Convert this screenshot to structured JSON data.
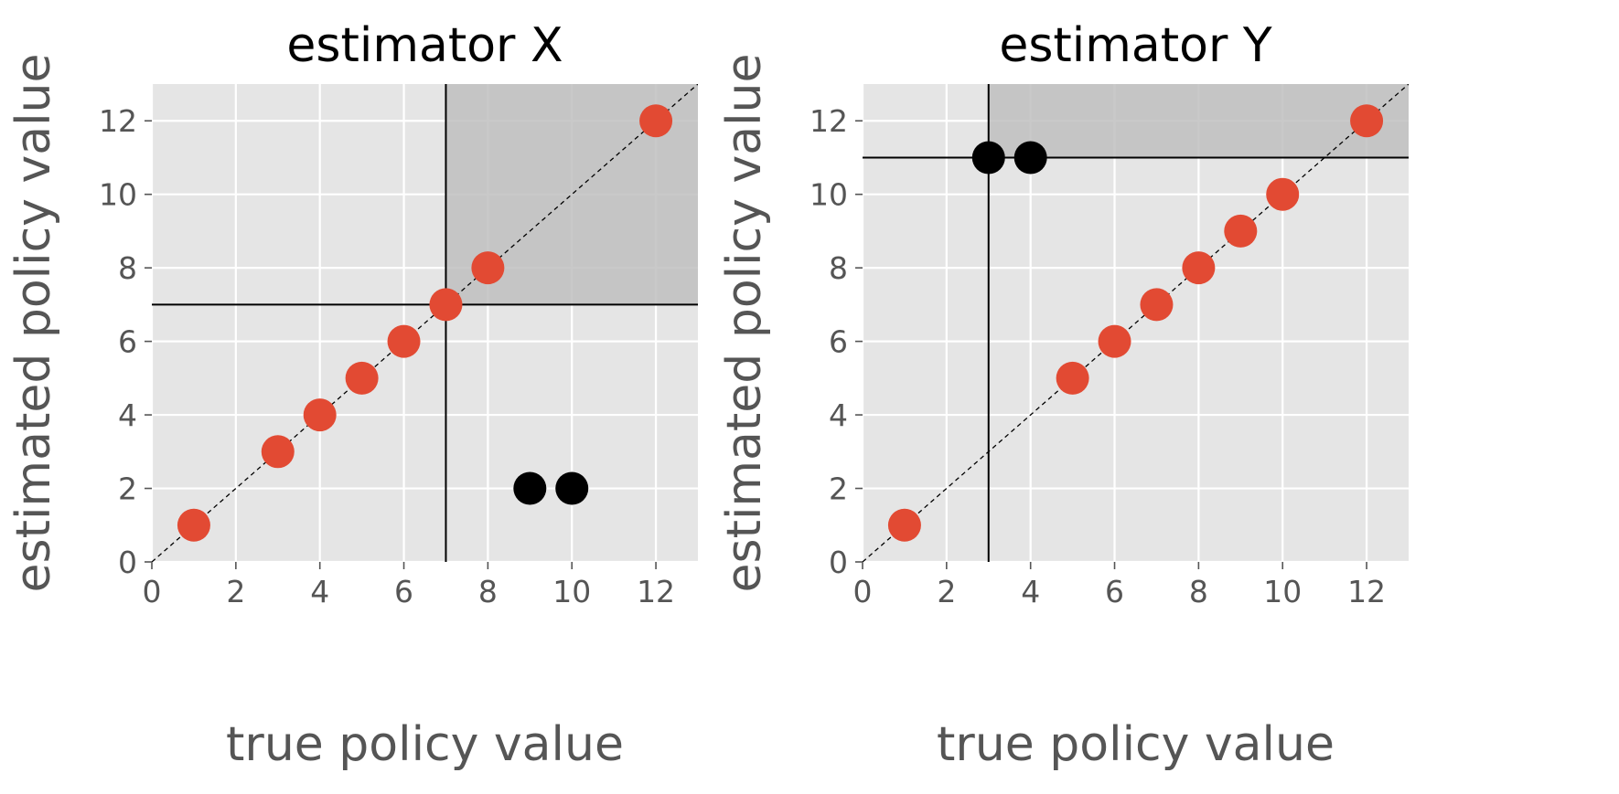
{
  "chart_data": [
    {
      "type": "scatter",
      "title": "estimator X",
      "xlabel": "true policy value",
      "ylabel": "estimated policy value",
      "xlim": [
        0,
        13
      ],
      "ylim": [
        0,
        13
      ],
      "xticks": [
        0,
        2,
        4,
        6,
        8,
        10,
        12
      ],
      "yticks": [
        0,
        2,
        4,
        6,
        8,
        10,
        12
      ],
      "grid": true,
      "diagonal": true,
      "threshold": {
        "x": 7,
        "y": 7
      },
      "series": [
        {
          "color": "#e24a33",
          "points": [
            [
              1,
              1
            ],
            [
              3,
              3
            ],
            [
              4,
              4
            ],
            [
              5,
              5
            ],
            [
              6,
              6
            ],
            [
              7,
              7
            ],
            [
              8,
              8
            ],
            [
              12,
              12
            ]
          ]
        },
        {
          "color": "#000000",
          "points": [
            [
              9,
              2
            ],
            [
              10,
              2
            ]
          ]
        }
      ]
    },
    {
      "type": "scatter",
      "title": "estimator Y",
      "xlabel": "true policy value",
      "ylabel": "estimated policy value",
      "xlim": [
        0,
        13
      ],
      "ylim": [
        0,
        13
      ],
      "xticks": [
        0,
        2,
        4,
        6,
        8,
        10,
        12
      ],
      "yticks": [
        0,
        2,
        4,
        6,
        8,
        10,
        12
      ],
      "grid": true,
      "diagonal": true,
      "threshold": {
        "x": 3,
        "y": 11
      },
      "series": [
        {
          "color": "#e24a33",
          "points": [
            [
              1,
              1
            ],
            [
              5,
              5
            ],
            [
              6,
              6
            ],
            [
              7,
              7
            ],
            [
              8,
              8
            ],
            [
              9,
              9
            ],
            [
              10,
              10
            ],
            [
              12,
              12
            ]
          ]
        },
        {
          "color": "#000000",
          "points": [
            [
              3,
              11
            ],
            [
              4,
              11
            ]
          ]
        }
      ]
    }
  ],
  "colors": {
    "panel_bg": "#e5e5e5",
    "shade": "#c0c0c0",
    "grid": "#ffffff",
    "tick_text": "#555555",
    "title_text": "#000000"
  }
}
